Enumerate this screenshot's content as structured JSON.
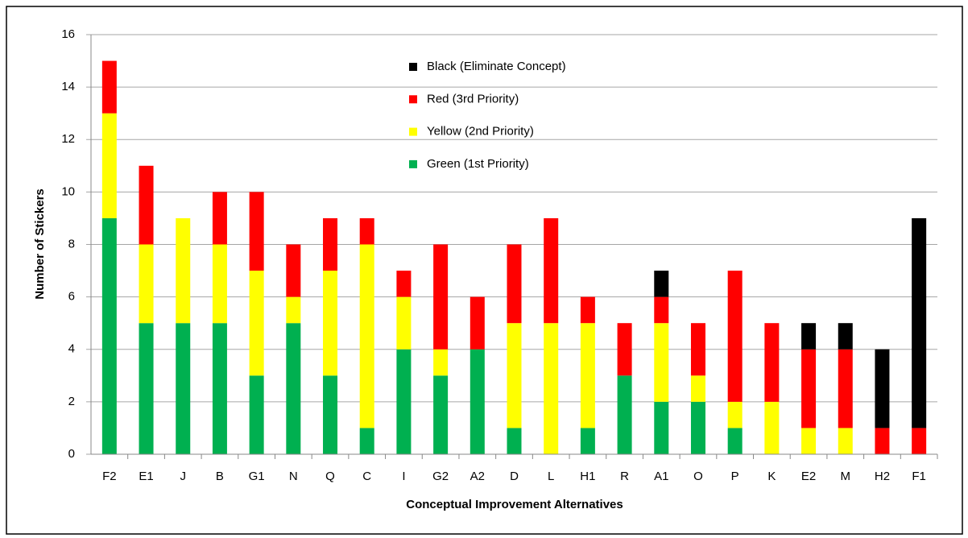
{
  "chart_data": {
    "type": "stacked_bar",
    "x_label": "Conceptual Improvement Alternatives",
    "y_label": "Number of Stickers",
    "categories": [
      "F2",
      "E1",
      "J",
      "B",
      "G1",
      "N",
      "Q",
      "C",
      "I",
      "G2",
      "A2",
      "D",
      "L",
      "H1",
      "R",
      "A1",
      "O",
      "P",
      "K",
      "E2",
      "M",
      "H2",
      "F1"
    ],
    "series": [
      {
        "name": "Green (1st Priority)",
        "color": "#00b050",
        "values": [
          9,
          5,
          5,
          5,
          3,
          5,
          3,
          1,
          4,
          3,
          4,
          1,
          0,
          1,
          3,
          2,
          2,
          1,
          0,
          0,
          0,
          0,
          0
        ]
      },
      {
        "name": "Yellow (2nd Priority)",
        "color": "#ffff00",
        "values": [
          4,
          3,
          4,
          3,
          4,
          1,
          4,
          7,
          2,
          1,
          0,
          4,
          5,
          4,
          0,
          3,
          1,
          1,
          2,
          1,
          1,
          0,
          0
        ]
      },
      {
        "name": "Red (3rd Priority)",
        "color": "#ff0000",
        "values": [
          2,
          3,
          0,
          2,
          3,
          2,
          2,
          1,
          1,
          4,
          2,
          3,
          4,
          1,
          2,
          1,
          2,
          5,
          3,
          3,
          3,
          1,
          1
        ]
      },
      {
        "name": "Black (Eliminate Concept)",
        "color": "#000000",
        "values": [
          0,
          0,
          0,
          0,
          0,
          0,
          0,
          0,
          0,
          0,
          0,
          0,
          0,
          0,
          0,
          1,
          0,
          0,
          0,
          1,
          1,
          3,
          8
        ]
      }
    ],
    "ylim": [
      0,
      16
    ],
    "yticks": [
      0,
      2,
      4,
      6,
      8,
      10,
      12,
      14,
      16
    ],
    "grid": true
  }
}
